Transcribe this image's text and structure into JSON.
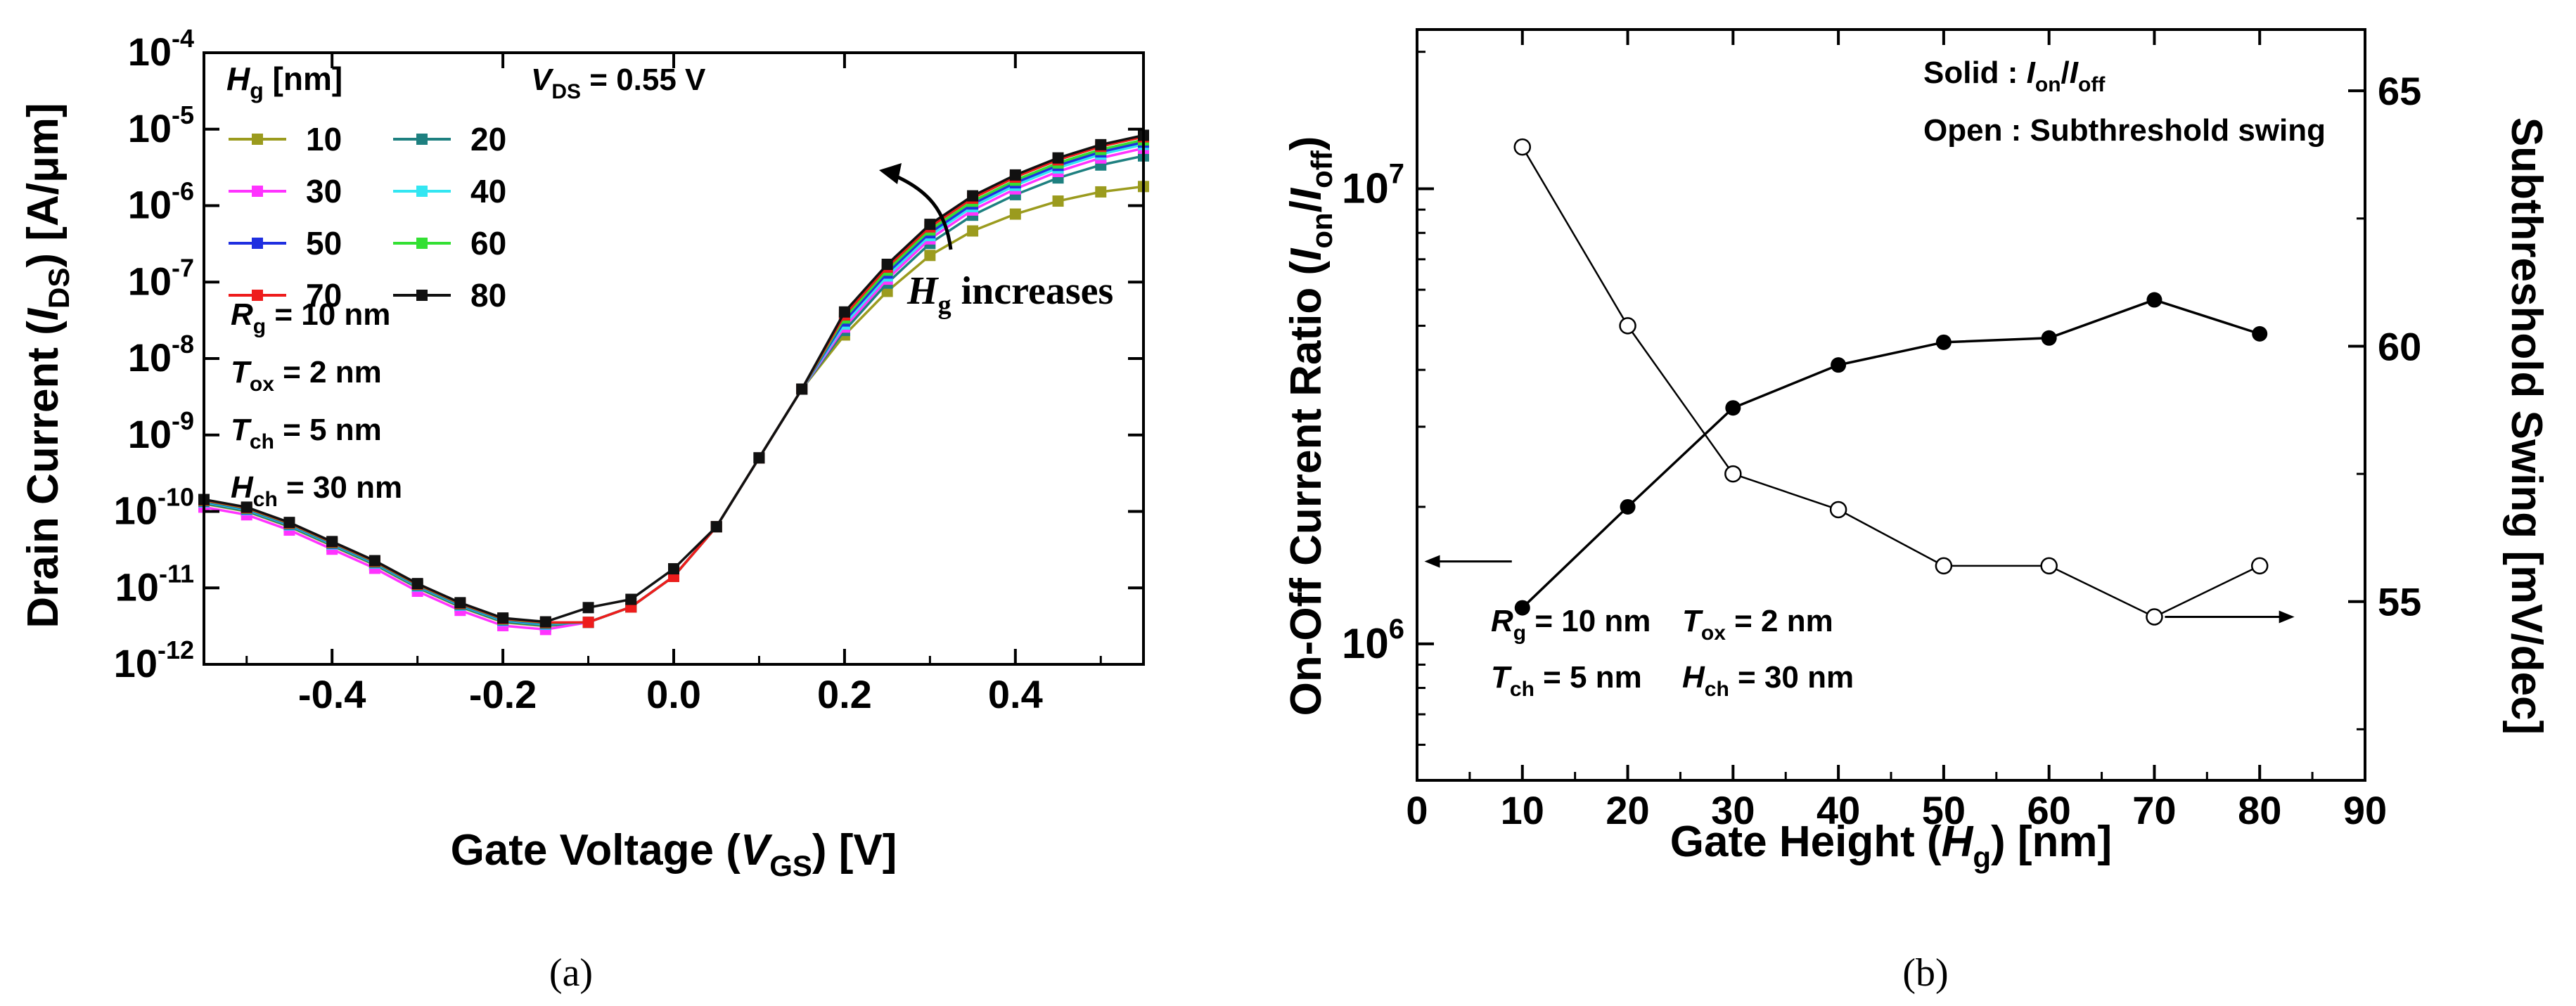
{
  "panel_labels": {
    "a": "(a)",
    "b": "(b)"
  },
  "chart_data": [
    {
      "type": "line",
      "panel": "(a)",
      "ylabel": {
        "pre": "Drain Current (",
        "var": "I",
        "sub": "DS",
        "post": ") [A/μm]"
      },
      "xlabel": {
        "pre": "Gate Voltage (",
        "var": "V",
        "sub": "GS",
        "post": ") [V]"
      },
      "xlim": [
        -0.55,
        0.55
      ],
      "ylim_log10": [
        -12,
        -4
      ],
      "y_scale": "log",
      "x_ticks": [
        "-0.4",
        "-0.2",
        "0.0",
        "0.2",
        "0.4"
      ],
      "x_tick_values": [
        -0.4,
        -0.2,
        0.0,
        0.2,
        0.4
      ],
      "y_ticks": [
        {
          "exp": -4,
          "label": "10",
          "sup": "-4"
        },
        {
          "exp": -5,
          "label": "10",
          "sup": "-5"
        },
        {
          "exp": -6,
          "label": "10",
          "sup": "-6"
        },
        {
          "exp": -7,
          "label": "10",
          "sup": "-7"
        },
        {
          "exp": -8,
          "label": "10",
          "sup": "-8"
        },
        {
          "exp": -9,
          "label": "10",
          "sup": "-9"
        },
        {
          "exp": -10,
          "label": "10",
          "sup": "-10"
        },
        {
          "exp": -11,
          "label": "10",
          "sup": "-11"
        },
        {
          "exp": -12,
          "label": "10",
          "sup": "-12"
        }
      ],
      "legend": {
        "title_var": "H",
        "title_sub": "g",
        "title_post": " [nm]",
        "placement": "top-left"
      },
      "vds_note": {
        "var": "V",
        "sub": "DS",
        "post": " = 0.55 V"
      },
      "annotation": {
        "var": "H",
        "sub": "g",
        "post": " increases"
      },
      "params": [
        {
          "var": "R",
          "sub": "g",
          "post": " = 10 nm"
        },
        {
          "var": "T",
          "sub": "ox",
          "post": " = 2 nm"
        },
        {
          "var": "T",
          "sub": "ch",
          "post": " = 5 nm"
        },
        {
          "var": "H",
          "sub": "ch",
          "post": " = 30 nm"
        }
      ],
      "series": [
        {
          "name": "10",
          "color": "#9b9b1e",
          "ion_log10": -5.75
        },
        {
          "name": "20",
          "color": "#1e8080",
          "ion_log10": -5.35
        },
        {
          "name": "30",
          "color": "#ff33ff",
          "ion_log10": -5.25
        },
        {
          "name": "40",
          "color": "#33e6f2",
          "ion_log10": -5.2
        },
        {
          "name": "50",
          "color": "#1f2fe0",
          "ion_log10": -5.17
        },
        {
          "name": "60",
          "color": "#33e033",
          "ion_log10": -5.14
        },
        {
          "name": "70",
          "color": "#ee1c1c",
          "ion_log10": -5.1
        },
        {
          "name": "80",
          "color": "#111111",
          "ion_log10": -5.08
        }
      ],
      "x_points": [
        -0.55,
        -0.5,
        -0.45,
        -0.4,
        -0.35,
        -0.3,
        -0.25,
        -0.2,
        -0.15,
        -0.1,
        -0.05,
        0.0,
        0.05,
        0.1,
        0.15,
        0.2,
        0.25,
        0.3,
        0.35,
        0.4,
        0.45,
        0.5,
        0.55
      ],
      "common_curve_log10": [
        -9.9,
        -10.0,
        -10.2,
        -10.45,
        -10.7,
        -11.0,
        -11.25,
        -11.45,
        -11.5,
        -11.45,
        -11.25,
        -10.85,
        -10.2,
        -9.3,
        -8.4,
        -7.5,
        -6.85,
        -6.3,
        -5.9,
        -5.6,
        -5.35,
        -5.15,
        -5.0
      ]
    },
    {
      "type": "scatter",
      "panel": "(b)",
      "xlabel": {
        "pre": "Gate Height (",
        "var": "H",
        "sub": "g",
        "post": ") [nm]"
      },
      "ylabel": {
        "pre": "On-Off Current Ratio (",
        "var1": "I",
        "sub1": "on",
        "mid": "/",
        "var2": "I",
        "sub2": "off",
        "post": ")"
      },
      "y2label": "Subthreshold Swing [mV/dec]",
      "xlim": [
        0,
        90
      ],
      "x_ticks": [
        0,
        10,
        20,
        30,
        40,
        50,
        60,
        70,
        80,
        90
      ],
      "y_scale": "log",
      "ylim_log10": [
        5.7,
        7.35
      ],
      "y_ticks": [
        {
          "exp": 6,
          "label": "10",
          "sup": "6"
        },
        {
          "exp": 7,
          "label": "10",
          "sup": "7"
        }
      ],
      "y2lim": [
        51.5,
        66.2
      ],
      "y2_ticks": [
        55,
        60,
        65
      ],
      "legend_notes": [
        {
          "pre": "Solid : ",
          "var1": "I",
          "sub1": "on",
          "mid": "/",
          "var2": "I",
          "sub2": "off"
        },
        {
          "pre": "Open : Subthreshold swing"
        }
      ],
      "params": [
        {
          "var": "R",
          "sub": "g",
          "post": " = 10 nm"
        },
        {
          "var": "T",
          "sub": "ox",
          "post": " = 2 nm"
        },
        {
          "var": "T",
          "sub": "ch",
          "post": " = 5 nm"
        },
        {
          "var": "H",
          "sub": "ch",
          "post": " = 30 nm"
        }
      ],
      "series": [
        {
          "name": "Solid : Ion/Ioff",
          "axis": "left",
          "marker": "filled-circle",
          "x": [
            10,
            20,
            30,
            40,
            50,
            60,
            70,
            80
          ],
          "y": [
            1200000,
            2000000,
            3300000,
            4100000,
            4600000,
            4700000,
            5700000,
            4800000
          ]
        },
        {
          "name": "Open : Subthreshold swing",
          "axis": "right",
          "marker": "open-circle",
          "x": [
            10,
            20,
            30,
            40,
            50,
            60,
            70,
            80
          ],
          "y": [
            63.9,
            60.4,
            57.5,
            56.8,
            55.7,
            55.7,
            54.7,
            55.7
          ]
        }
      ]
    }
  ]
}
